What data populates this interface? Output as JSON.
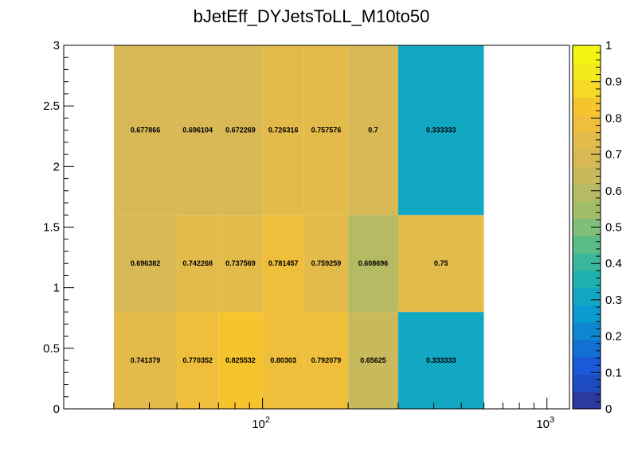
{
  "chart_data": {
    "type": "heatmap",
    "title": "bJetEff_DYJetsToLL_M10to50",
    "xlabel": "",
    "ylabel": "",
    "x_scale": "log",
    "xlim": [
      20,
      1200
    ],
    "ylim": [
      0,
      3
    ],
    "x_edges": [
      30,
      50,
      70,
      100,
      140,
      200,
      300,
      600
    ],
    "y_edges": [
      0,
      0.8,
      1.6,
      3.0
    ],
    "values": [
      [
        0.741379,
        0.770352,
        0.825532,
        0.80303,
        0.792079,
        0.65625,
        0.333333
      ],
      [
        0.696382,
        0.742268,
        0.737569,
        0.781457,
        0.759259,
        0.608696,
        0.75
      ],
      [
        0.677866,
        0.696104,
        0.672269,
        0.726316,
        0.757576,
        0.7,
        0.333333
      ]
    ],
    "cell_labels": [
      [
        "0.741379",
        "0.770352",
        "0.825532",
        "0.80303",
        "0.792079",
        "0.65625",
        "0.333333"
      ],
      [
        "0.696382",
        "0.742268",
        "0.737569",
        "0.781457",
        "0.759259",
        "0.608696",
        "0.75"
      ],
      [
        "0.677866",
        "0.696104",
        "0.672269",
        "0.726316",
        "0.757576",
        "0.7",
        "0.333333"
      ]
    ],
    "y_tick_labels": [
      "0",
      "0.5",
      "1",
      "1.5",
      "2",
      "2.5",
      "3"
    ],
    "x_tick_labels": [
      {
        "value": 100,
        "base": "10",
        "exp": "2"
      },
      {
        "value": 1000,
        "base": "10",
        "exp": "3"
      }
    ],
    "colorbar": {
      "zlim": [
        0,
        1
      ],
      "tick_labels": [
        "0",
        "0.1",
        "0.2",
        "0.3",
        "0.4",
        "0.5",
        "0.6",
        "0.7",
        "0.8",
        "0.9",
        "1"
      ],
      "palette": [
        "#2a3a9e",
        "#1d4bc1",
        "#1a5ad8",
        "#1270d4",
        "#0f87d0",
        "#0a9bd0",
        "#12a8c4",
        "#20b2b0",
        "#3ab89c",
        "#5cbc88",
        "#80bf77",
        "#a1bd6a",
        "#b5bb62",
        "#c8b95c",
        "#d8b956",
        "#e3bb4b",
        "#efbe3a",
        "#f6c52e",
        "#f7d824",
        "#f5ea1c",
        "#f5f514"
      ]
    },
    "grid": false,
    "legend": "colorbar-right"
  }
}
